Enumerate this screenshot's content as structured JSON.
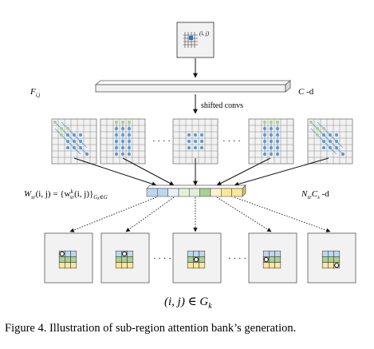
{
  "top_box_label": "(i, j)",
  "f_label": "F",
  "f_sub": "i,j",
  "c_label": "C",
  "c_suffix": " -d",
  "shifted_label": "shifted convs",
  "ellipsis": "· · · ·",
  "w_label": "W",
  "w_sub": "sr",
  "w_args": "(i, j) = {w",
  "w_sup": "k",
  "w_sub2": "sr",
  "w_args2": "(i, j)}",
  "w_index": "G",
  "w_index_sub": "k",
  "w_index_tail": "∈G",
  "n_label": "N",
  "n_sub": "sr",
  "n_c": "C",
  "n_c_sub": "s",
  "n_suffix": " -d",
  "region_label": "(i, j) ∈ G",
  "region_sub": "k",
  "caption": "Figure 4. Illustration of sub-region attention bank’s generation.",
  "colors": {
    "blue_dot": "#5b9bd5",
    "green_dot": "#a9d18e",
    "cell_blue": "#bdd7ee",
    "cell_green": "#a9d18e",
    "cell_yellow": "#ffe699",
    "cell_lightyellow": "#fff2cc",
    "cell_lightgreen": "#e2f0d9"
  }
}
